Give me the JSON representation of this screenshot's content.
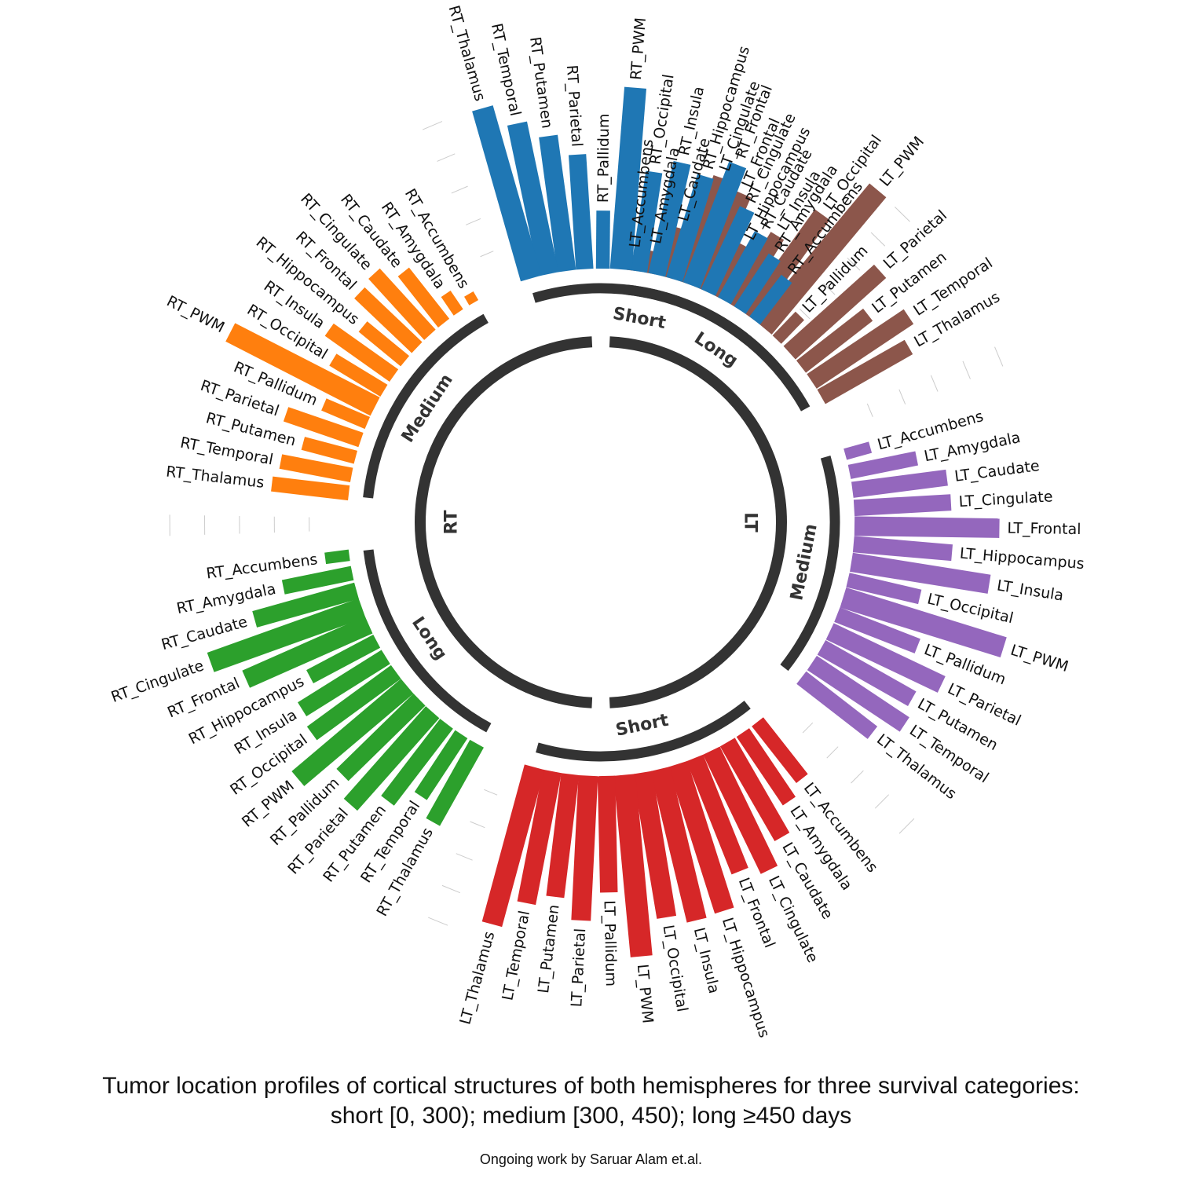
{
  "chart_data": {
    "type": "circular-bar",
    "title_line1": "Tumor location profiles of cortical structures of both hemispheres for three survival categories:",
    "title_line2": "short [0, 300); medium [300, 450); long ≥450 days",
    "credit": "Ongoing work by Saruar Alam et.al.",
    "hemispheres": [
      "RT",
      "LT"
    ],
    "ylim": [
      0,
      1
    ],
    "groups": [
      {
        "name": "Short",
        "hemisphere": "RT",
        "color": "#1f77b4",
        "labels": [
          "RT_Accumbens",
          "RT_Amygdala",
          "RT_Caudate",
          "RT_Cingulate",
          "RT_Frontal",
          "RT_Hippocampus",
          "RT_Insula",
          "RT_Occipital",
          "RT_PWM",
          "RT_Pallidum",
          "RT_Parietal",
          "RT_Putamen",
          "RT_Temporal",
          "RT_Thalamus"
        ],
        "values": [
          0.27,
          0.33,
          0.4,
          0.49,
          0.7,
          0.58,
          0.62,
          0.54,
          1.0,
          0.3,
          0.62,
          0.74,
          0.84,
          0.97
        ]
      },
      {
        "name": "Medium",
        "hemisphere": "RT",
        "color": "#ff7f0e",
        "labels": [
          "RT_Accumbens",
          "RT_Amygdala",
          "RT_Caudate",
          "RT_Cingulate",
          "RT_Frontal",
          "RT_Hippocampus",
          "RT_Insula",
          "RT_Occipital",
          "RT_PWM",
          "RT_Pallidum",
          "RT_Parietal",
          "RT_Putamen",
          "RT_Temporal",
          "RT_Thalamus"
        ],
        "values": [
          0.03,
          0.1,
          0.34,
          0.44,
          0.42,
          0.28,
          0.42,
          0.31,
          0.89,
          0.24,
          0.42,
          0.28,
          0.38,
          0.41
        ]
      },
      {
        "name": "Long",
        "hemisphere": "RT",
        "color": "#2ca02c",
        "labels": [
          "RT_Accumbens",
          "RT_Amygdala",
          "RT_Caudate",
          "RT_Cingulate",
          "RT_Frontal",
          "RT_Hippocampus",
          "RT_Insula",
          "RT_Occipital",
          "RT_PWM",
          "RT_Pallidum",
          "RT_Parietal",
          "RT_Putamen",
          "RT_Temporal",
          "RT_Thalamus"
        ],
        "values": [
          0.11,
          0.37,
          0.57,
          0.88,
          0.73,
          0.4,
          0.53,
          0.56,
          0.78,
          0.58,
          0.67,
          0.52,
          0.39,
          0.48
        ]
      },
      {
        "name": "Short",
        "hemisphere": "LT",
        "color": "#d62728",
        "labels": [
          "LT_Accumbens",
          "LT_Amygdala",
          "LT_Caudate",
          "LT_Cingulate",
          "LT_Frontal",
          "LT_Hippocampus",
          "LT_Insula",
          "LT_Occipital",
          "LT_PWM",
          "LT_Pallidum",
          "LT_Parietal",
          "LT_Putamen",
          "LT_Temporal",
          "LT_Thalamus"
        ],
        "values": [
          0.38,
          0.44,
          0.59,
          0.72,
          0.66,
          0.84,
          0.85,
          0.8,
          1.0,
          0.63,
          0.79,
          0.67,
          0.73,
          0.89
        ]
      },
      {
        "name": "Medium",
        "hemisphere": "LT",
        "color": "#9467bd",
        "labels": [
          "LT_Accumbens",
          "LT_Amygdala",
          "LT_Caudate",
          "LT_Cingulate",
          "LT_Frontal",
          "LT_Hippocampus",
          "LT_Insula",
          "LT_Occipital",
          "LT_PWM",
          "LT_Pallidum",
          "LT_Parietal",
          "LT_Putamen",
          "LT_Temporal",
          "LT_Thalamus"
        ],
        "values": [
          0.12,
          0.36,
          0.51,
          0.52,
          0.79,
          0.53,
          0.76,
          0.39,
          0.92,
          0.46,
          0.67,
          0.56,
          0.6,
          0.48
        ]
      },
      {
        "name": "Long",
        "hemisphere": "LT",
        "color": "#8c564b",
        "labels": [
          "LT_Accumbens",
          "LT_Amygdala",
          "LT_Caudate",
          "LT_Cingulate",
          "LT_Frontal",
          "LT_Hippocampus",
          "LT_Insula",
          "LT_Occipital",
          "LT_PWM",
          "LT_Pallidum",
          "LT_Parietal",
          "LT_Putamen",
          "LT_Temporal",
          "LT_Thalamus"
        ],
        "values": [
          0.06,
          0.1,
          0.26,
          0.6,
          0.56,
          0.3,
          0.44,
          0.68,
          0.98,
          0.16,
          0.66,
          0.45,
          0.63,
          0.54
        ]
      }
    ]
  }
}
